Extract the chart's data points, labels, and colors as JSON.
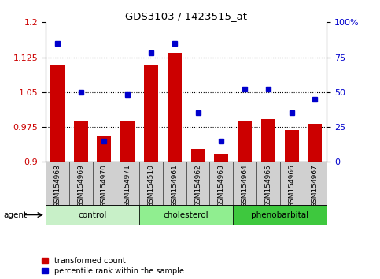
{
  "title": "GDS3103 / 1423515_at",
  "categories": [
    "GSM154968",
    "GSM154969",
    "GSM154970",
    "GSM154971",
    "GSM154510",
    "GSM154961",
    "GSM154962",
    "GSM154963",
    "GSM154964",
    "GSM154965",
    "GSM154966",
    "GSM154967"
  ],
  "red_values": [
    1.108,
    0.988,
    0.955,
    0.988,
    1.108,
    1.135,
    0.928,
    0.918,
    0.988,
    0.992,
    0.968,
    0.982
  ],
  "blue_values": [
    85,
    50,
    15,
    48,
    78,
    85,
    35,
    15,
    52,
    52,
    35,
    45
  ],
  "groups": [
    {
      "label": "control",
      "start": 0,
      "end": 3,
      "color": "#c8f0c8"
    },
    {
      "label": "cholesterol",
      "start": 4,
      "end": 7,
      "color": "#90ee90"
    },
    {
      "label": "phenobarbital",
      "start": 8,
      "end": 11,
      "color": "#3ec83e"
    }
  ],
  "agent_label": "agent",
  "red_color": "#cc0000",
  "blue_color": "#0000cc",
  "ylim_left": [
    0.9,
    1.2
  ],
  "ylim_right": [
    0,
    100
  ],
  "yticks_left": [
    0.9,
    0.975,
    1.05,
    1.125,
    1.2
  ],
  "yticks_right": [
    0,
    25,
    50,
    75,
    100
  ],
  "grid_values": [
    0.975,
    1.05,
    1.125
  ],
  "legend_red": "transformed count",
  "legend_blue": "percentile rank within the sample",
  "bar_width": 0.6,
  "xticklabel_bg": "#d0d0d0"
}
